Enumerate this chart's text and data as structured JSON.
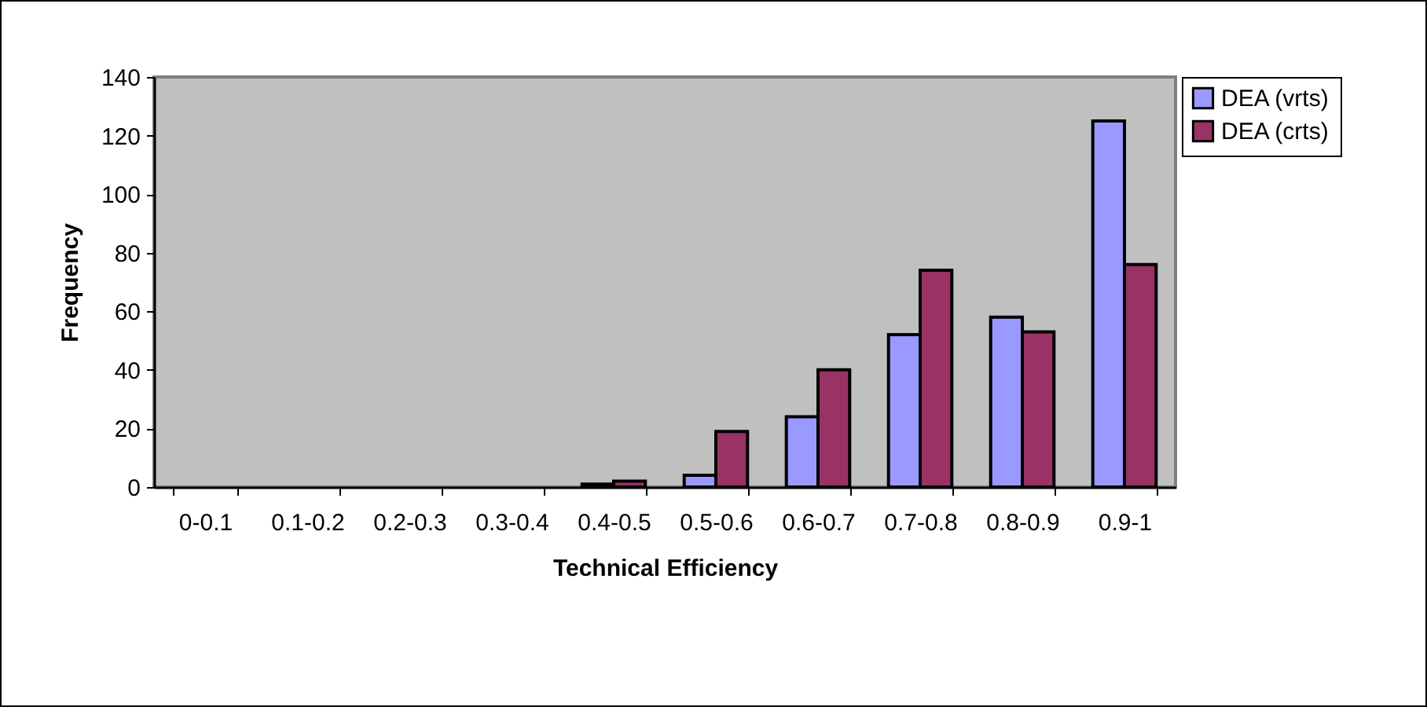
{
  "chart_data": {
    "type": "bar",
    "xlabel": "Technical Efficiency",
    "ylabel": "Frequency",
    "categories": [
      "0-0.1",
      "0.1-0.2",
      "0.2-0.3",
      "0.3-0.4",
      "0.4-0.5",
      "0.5-0.6",
      "0.6-0.7",
      "0.7-0.8",
      "0.8-0.9",
      "0.9-1"
    ],
    "series": [
      {
        "name": "DEA (vrts)",
        "color": "#9999ff",
        "values": [
          0,
          0,
          0,
          0,
          1,
          4,
          24,
          52,
          58,
          125
        ]
      },
      {
        "name": "DEA (crts)",
        "color": "#993366",
        "values": [
          0,
          0,
          0,
          0,
          2,
          19,
          40,
          74,
          53,
          76
        ]
      }
    ],
    "ylim": [
      0,
      140
    ],
    "yticks": [
      0,
      20,
      40,
      60,
      80,
      100,
      120,
      140
    ],
    "grid": false,
    "legend": "right"
  }
}
